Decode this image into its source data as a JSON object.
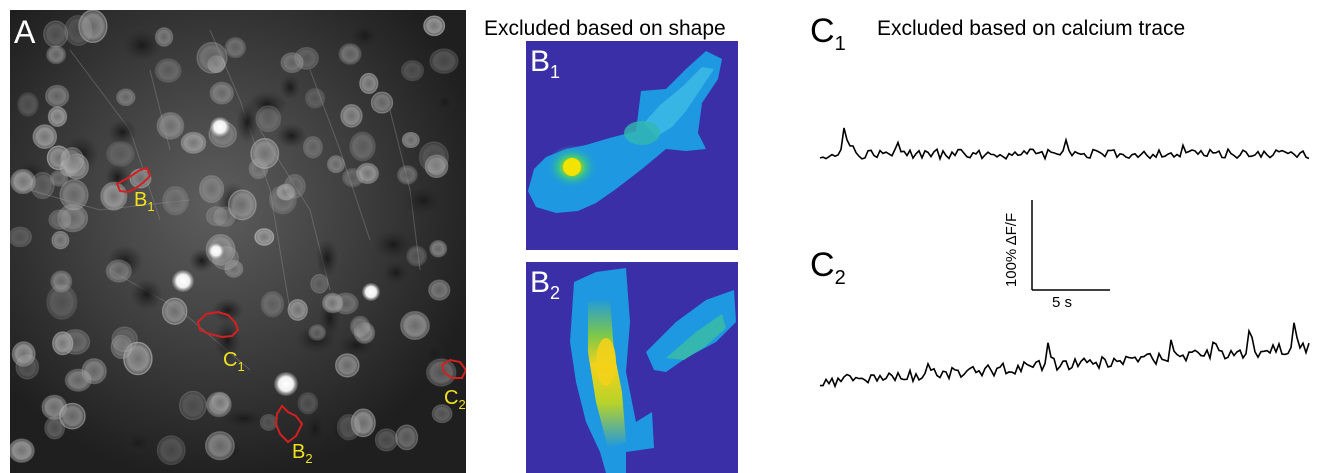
{
  "panel_a": {
    "label": "A",
    "rois": [
      {
        "label": "B",
        "sub": "1",
        "color": "#d42020"
      },
      {
        "label": "C",
        "sub": "1",
        "color": "#d42020"
      },
      {
        "label": "C",
        "sub": "2",
        "color": "#d42020"
      },
      {
        "label": "B",
        "sub": "2",
        "color": "#d42020"
      }
    ],
    "label_color": "#f0e020"
  },
  "panel_b": {
    "heading": "Excluded based on shape",
    "maps": [
      {
        "label": "B",
        "sub": "1"
      },
      {
        "label": "B",
        "sub": "2"
      }
    ],
    "background_color": "#3a2fa6"
  },
  "panel_c": {
    "heading": "Excluded based on calcium trace",
    "traces": [
      {
        "label": "C",
        "sub": "1"
      },
      {
        "label": "C",
        "sub": "2"
      }
    ],
    "scale_bar": {
      "vertical": "100% ΔF/F",
      "horizontal": "5 s"
    }
  }
}
